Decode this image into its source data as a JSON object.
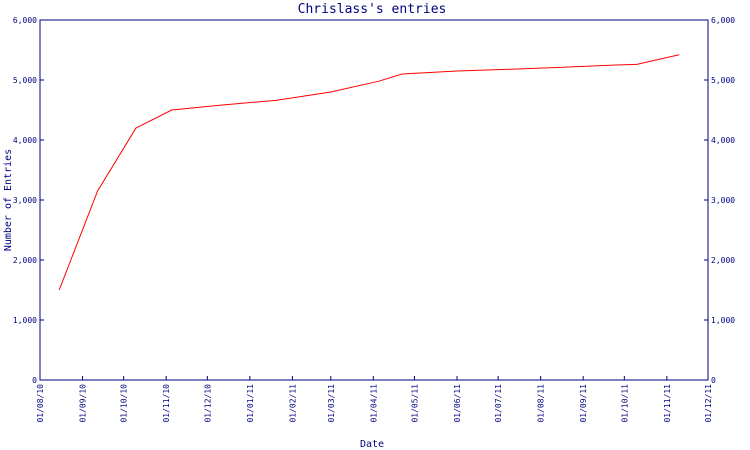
{
  "chart_data": {
    "type": "line",
    "title": "Chrislass's entries",
    "xlabel": "Date",
    "ylabel": "Number of Entries",
    "ylim": [
      0,
      6000
    ],
    "yticks": [
      0,
      1000,
      2000,
      3000,
      4000,
      5000,
      6000
    ],
    "ytick_labels": [
      "0",
      "1,000",
      "2,000",
      "3,000",
      "4,000",
      "5,000",
      "6,000"
    ],
    "xlim": [
      "2010-08-01",
      "2011-12-01"
    ],
    "xticks": [
      "2010-08-01",
      "2010-09-01",
      "2010-10-01",
      "2010-11-01",
      "2010-12-01",
      "2011-01-01",
      "2011-02-01",
      "2011-03-01",
      "2011-04-01",
      "2011-05-01",
      "2011-06-01",
      "2011-07-01",
      "2011-08-01",
      "2011-09-01",
      "2011-10-01",
      "2011-11-01",
      "2011-12-01"
    ],
    "xtick_labels": [
      "01/08/10",
      "01/09/10",
      "01/10/10",
      "01/11/10",
      "01/12/10",
      "01/01/11",
      "01/02/11",
      "01/03/11",
      "01/04/11",
      "01/05/11",
      "01/06/11",
      "01/07/11",
      "01/08/11",
      "01/09/11",
      "01/10/11",
      "01/11/11",
      "01/12/11"
    ],
    "grid": false,
    "series": [
      {
        "color": "#ff0000",
        "points": [
          {
            "x": "2010-08-15",
            "y": 1500
          },
          {
            "x": "2010-09-12",
            "y": 3150
          },
          {
            "x": "2010-10-10",
            "y": 4200
          },
          {
            "x": "2010-11-05",
            "y": 4500
          },
          {
            "x": "2010-12-10",
            "y": 4580
          },
          {
            "x": "2011-01-20",
            "y": 4660
          },
          {
            "x": "2011-03-01",
            "y": 4800
          },
          {
            "x": "2011-04-05",
            "y": 4980
          },
          {
            "x": "2011-04-22",
            "y": 5100
          },
          {
            "x": "2011-06-01",
            "y": 5150
          },
          {
            "x": "2011-07-10",
            "y": 5180
          },
          {
            "x": "2011-08-15",
            "y": 5210
          },
          {
            "x": "2011-09-25",
            "y": 5250
          },
          {
            "x": "2011-10-10",
            "y": 5260
          },
          {
            "x": "2011-11-10",
            "y": 5420
          }
        ]
      }
    ]
  },
  "colors": {
    "axis": "#000080",
    "text": "#000080",
    "line": "#ff0000",
    "background": "#ffffff"
  }
}
